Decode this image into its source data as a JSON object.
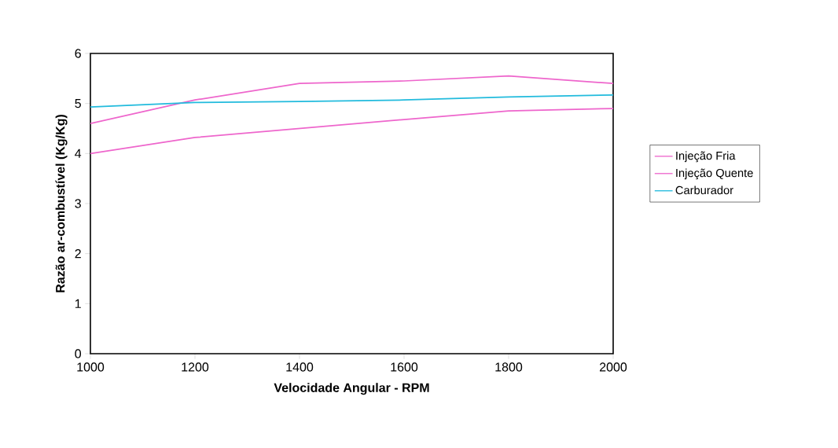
{
  "chart_data": {
    "type": "line",
    "xlabel": "Velocidade Angular - RPM",
    "ylabel": "Razão ar-combustível (Kg/Kg)",
    "x": [
      1000,
      1200,
      1400,
      1600,
      1800,
      2000
    ],
    "series": [
      {
        "name": "Injeção Fria",
        "color": "#ee66cc",
        "values": [
          4.6,
          5.07,
          5.4,
          5.45,
          5.55,
          5.4
        ]
      },
      {
        "name": "Injeção Quente",
        "color": "#ee66cc",
        "values": [
          4.0,
          4.32,
          4.5,
          4.68,
          4.85,
          4.9
        ]
      },
      {
        "name": "Carburador",
        "color": "#22bbdd",
        "values": [
          4.93,
          5.02,
          5.04,
          5.07,
          5.13,
          5.17
        ]
      }
    ],
    "xlim": [
      1000,
      2000
    ],
    "xticks": [
      1000,
      1200,
      1400,
      1600,
      1800,
      2000
    ],
    "ylim": [
      0,
      6
    ],
    "yticks": [
      0,
      1,
      2,
      3,
      4,
      5,
      6
    ],
    "grid": false,
    "legend": "right",
    "marker": "none",
    "line_style": "solid"
  }
}
